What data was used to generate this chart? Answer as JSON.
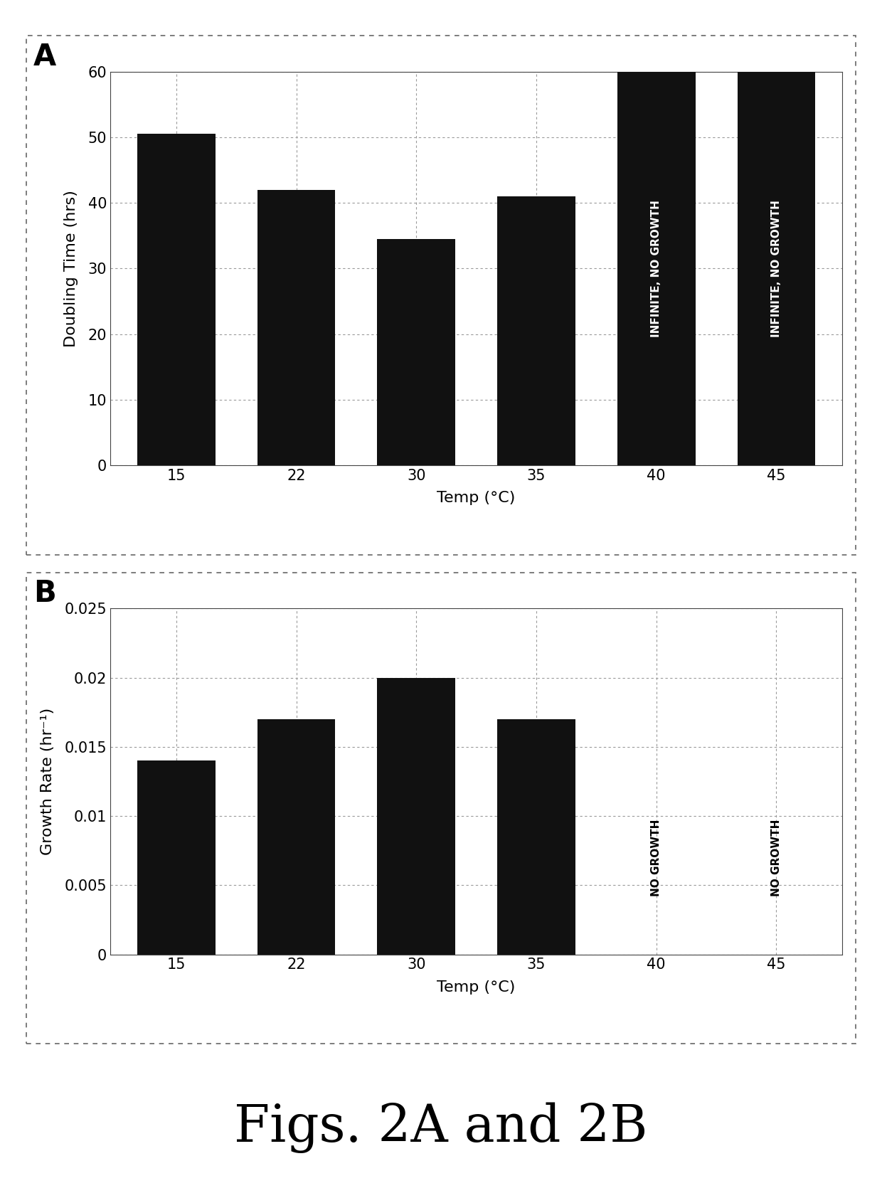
{
  "fig_A": {
    "categories": [
      "15",
      "22",
      "30",
      "35",
      "40",
      "45"
    ],
    "values": [
      50.5,
      42,
      34.5,
      41,
      60,
      60
    ],
    "bar_color": "#111111",
    "infinite_bars": [
      4,
      5
    ],
    "infinite_label": "INFINITE, NO GROWTH",
    "ylabel": "Doubling Time (hrs)",
    "xlabel": "Temp (°C)",
    "ylim": [
      0,
      60
    ],
    "yticks": [
      0,
      10,
      20,
      30,
      40,
      50,
      60
    ],
    "panel_label": "A"
  },
  "fig_B": {
    "categories": [
      "15",
      "22",
      "30",
      "35",
      "40",
      "45"
    ],
    "values": [
      0.014,
      0.017,
      0.02,
      0.017,
      0,
      0
    ],
    "bar_color": "#111111",
    "no_growth_bars": [
      4,
      5
    ],
    "no_growth_label": "NO GROWTH",
    "ylabel": "Growth Rate (hr⁻¹)",
    "xlabel": "Temp (°C)",
    "ylim": [
      0,
      0.025
    ],
    "yticks": [
      0,
      0.005,
      0.01,
      0.015,
      0.02,
      0.025
    ],
    "ytick_labels": [
      "0",
      "0.005",
      "0.01",
      "0.015",
      "0.02",
      "0.025"
    ],
    "panel_label": "B"
  },
  "figure_title": "Figs. 2A and 2B",
  "background_color": "#ffffff",
  "bar_width": 0.65,
  "grid_color": "#999999",
  "border_color": "#666666",
  "tick_fontsize": 15,
  "label_fontsize": 16,
  "panel_label_fontsize": 30
}
